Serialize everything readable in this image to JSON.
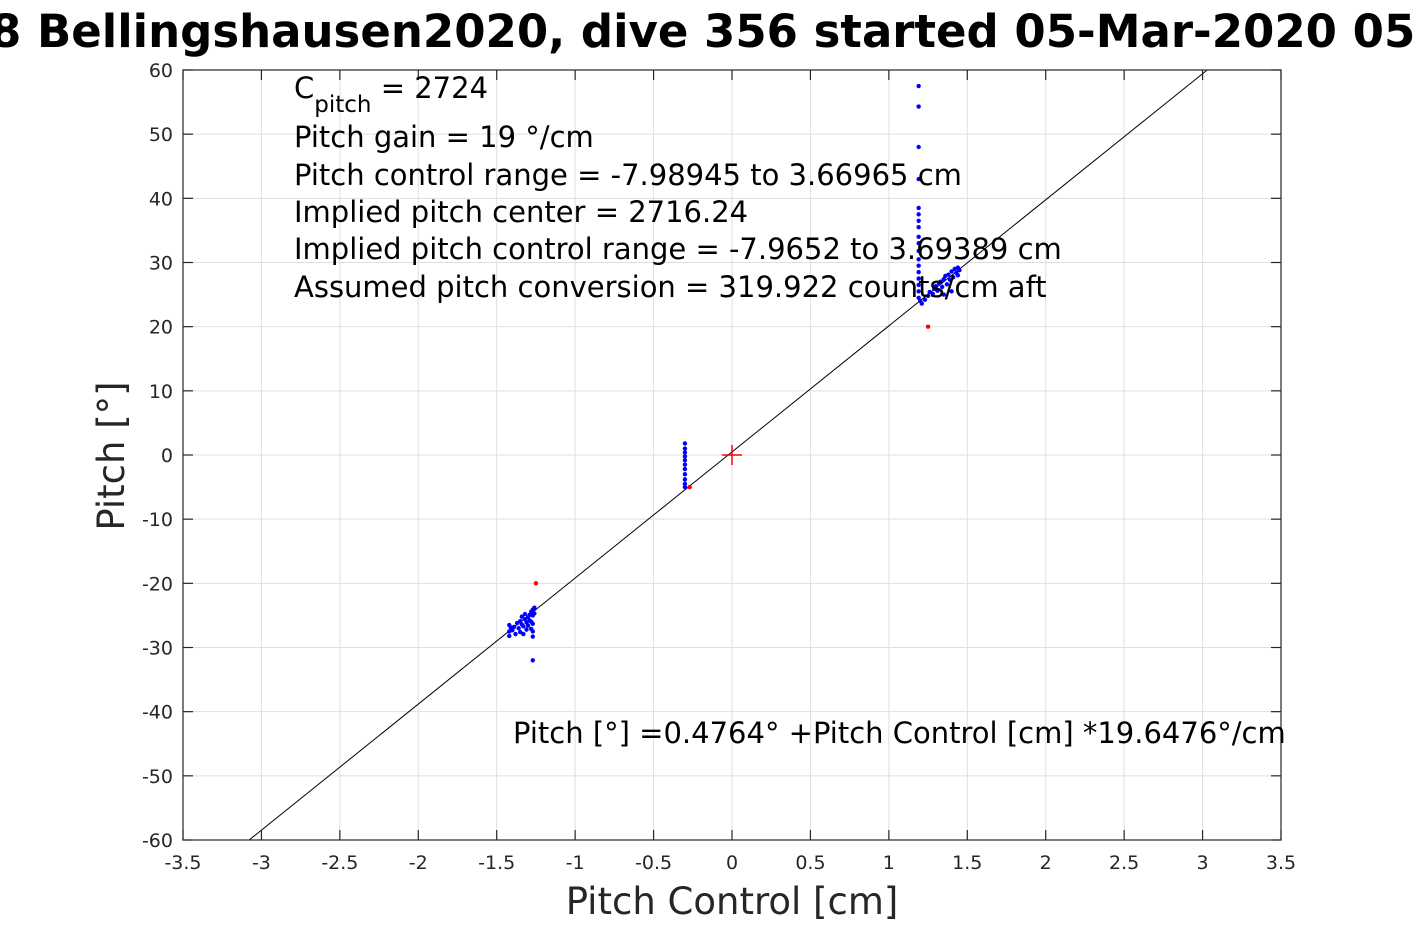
{
  "chart_data": {
    "type": "scatter",
    "title": "8 Bellingshausen2020, dive 356 started 05-Mar-2020 05",
    "xlabel": "Pitch Control [cm]",
    "ylabel": "Pitch [°]",
    "xlim": [
      -3.5,
      3.5
    ],
    "ylim": [
      -60,
      60
    ],
    "xticks": [
      -3.5,
      -3,
      -2.5,
      -2,
      -1.5,
      -1,
      -0.5,
      0,
      0.5,
      1,
      1.5,
      2,
      2.5,
      3,
      3.5
    ],
    "xtick_labels": [
      "-3.5",
      "-3",
      "-2.5",
      "-2",
      "-1.5",
      "-1",
      "-0.5",
      "0",
      "0.5",
      "1",
      "1.5",
      "2",
      "2.5",
      "3",
      "3.5"
    ],
    "yticks": [
      60,
      50,
      40,
      30,
      20,
      10,
      0,
      -10,
      -20,
      -30,
      -40,
      -50,
      -60
    ],
    "ytick_labels": [
      "60",
      "50",
      "40",
      "30",
      "20",
      "10",
      "0",
      "-10",
      "-20",
      "-30",
      "-40",
      "-50",
      "-60"
    ],
    "grid": true,
    "annotations": {
      "c_pitch_main": "C",
      "c_pitch_sub": "pitch",
      "c_pitch_rest": " = 2724",
      "lines": [
        "Pitch gain = 19 °/cm",
        "Pitch control range = -7.98945 to 3.66965 cm",
        "Implied pitch center = 2716.24",
        "Implied pitch control range = -7.9652 to 3.69389 cm",
        "Assumed pitch conversion = 319.922 counts/cm aft"
      ],
      "fit_equation": "Pitch [°] =0.4764° +Pitch Control [cm] *19.6476°/cm"
    },
    "series": [
      {
        "kind": "points",
        "color": "#0000ff",
        "points": [
          [
            -1.42,
            -26.5
          ],
          [
            -1.42,
            -27.5
          ],
          [
            -1.42,
            -28.2
          ],
          [
            -1.41,
            -26.9
          ],
          [
            -1.4,
            -27.3
          ],
          [
            -1.39,
            -26.8
          ],
          [
            -1.38,
            -27.9
          ],
          [
            -1.37,
            -26.2
          ],
          [
            -1.36,
            -27.0
          ],
          [
            -1.35,
            -25.9
          ],
          [
            -1.35,
            -27.6
          ],
          [
            -1.34,
            -26.4
          ],
          [
            -1.34,
            -25.2
          ],
          [
            -1.33,
            -26.7
          ],
          [
            -1.33,
            -27.9
          ],
          [
            -1.32,
            -25.6
          ],
          [
            -1.32,
            -24.8
          ],
          [
            -1.31,
            -26.1
          ],
          [
            -1.31,
            -27.2
          ],
          [
            -1.3,
            -25.3
          ],
          [
            -1.3,
            -26.6
          ],
          [
            -1.29,
            -24.9
          ],
          [
            -1.29,
            -25.8
          ],
          [
            -1.28,
            -24.4
          ],
          [
            -1.28,
            -26.0
          ],
          [
            -1.28,
            -27.1
          ],
          [
            -1.27,
            -25.0
          ],
          [
            -1.27,
            -24.1
          ],
          [
            -1.27,
            -26.3
          ],
          [
            -1.27,
            -27.5
          ],
          [
            -1.27,
            -28.3
          ],
          [
            -1.26,
            -23.8
          ],
          [
            -1.26,
            -24.7
          ],
          [
            -1.27,
            -32.0
          ],
          [
            -0.3,
            1.8
          ],
          [
            -0.3,
            1.0
          ],
          [
            -0.3,
            0.4
          ],
          [
            -0.3,
            -0.2
          ],
          [
            -0.3,
            -0.8
          ],
          [
            -0.3,
            -1.5
          ],
          [
            -0.3,
            -2.2
          ],
          [
            -0.3,
            -3.0
          ],
          [
            -0.3,
            -3.8
          ],
          [
            -0.3,
            -4.5
          ],
          [
            -0.3,
            -5.0
          ],
          [
            1.19,
            57.5
          ],
          [
            1.19,
            54.3
          ],
          [
            1.19,
            48.0
          ],
          [
            1.19,
            43.0
          ],
          [
            1.19,
            38.5
          ],
          [
            1.19,
            37.5
          ],
          [
            1.19,
            36.5
          ],
          [
            1.19,
            35.5
          ],
          [
            1.19,
            34.0
          ],
          [
            1.19,
            33.0
          ],
          [
            1.19,
            31.8
          ],
          [
            1.19,
            30.5
          ],
          [
            1.19,
            29.5
          ],
          [
            1.19,
            28.5
          ],
          [
            1.19,
            27.5
          ],
          [
            1.19,
            26.5
          ],
          [
            1.19,
            25.5
          ],
          [
            1.19,
            24.5
          ],
          [
            1.2,
            24.0
          ],
          [
            1.21,
            23.6
          ],
          [
            1.23,
            24.2
          ],
          [
            1.25,
            24.8
          ],
          [
            1.26,
            25.4
          ],
          [
            1.28,
            25.1
          ],
          [
            1.29,
            25.9
          ],
          [
            1.3,
            26.3
          ],
          [
            1.31,
            25.6
          ],
          [
            1.32,
            26.8
          ],
          [
            1.33,
            27.0
          ],
          [
            1.34,
            26.2
          ],
          [
            1.35,
            27.4
          ],
          [
            1.36,
            27.9
          ],
          [
            1.37,
            26.6
          ],
          [
            1.38,
            28.1
          ],
          [
            1.39,
            27.3
          ],
          [
            1.4,
            28.6
          ],
          [
            1.41,
            27.7
          ],
          [
            1.42,
            29.0
          ],
          [
            1.43,
            28.4
          ],
          [
            1.44,
            29.2
          ],
          [
            1.44,
            28.0
          ],
          [
            1.45,
            28.8
          ],
          [
            1.4,
            25.5
          ],
          [
            1.35,
            25.0
          ]
        ]
      },
      {
        "kind": "points",
        "color": "#ff0000",
        "points": [
          [
            -1.25,
            -20.0
          ],
          [
            1.25,
            20.0
          ],
          [
            -0.27,
            -5.0
          ]
        ]
      },
      {
        "kind": "marker",
        "color": "#ff0000",
        "points": [
          [
            0,
            0
          ]
        ]
      },
      {
        "kind": "line",
        "color": "#000000",
        "slope": 19.6476,
        "intercept": 0.4764
      }
    ]
  }
}
